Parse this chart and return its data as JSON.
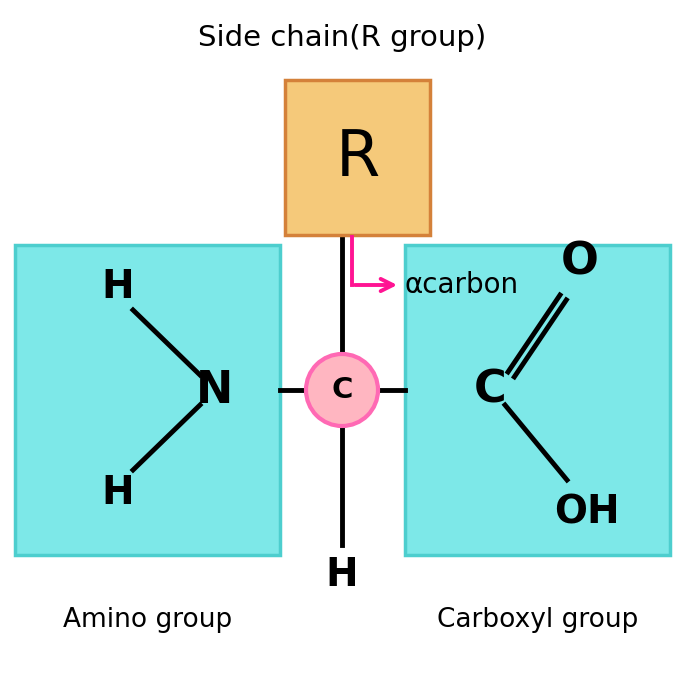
{
  "title": "Side chain(R group)",
  "bg_color": "#ffffff",
  "cyan_box_color": "#7DE8E8",
  "cyan_box_edge": "#4DCECE",
  "orange_box_color": "#F5C97A",
  "orange_box_edge": "#D4813A",
  "circle_fill": "#FFB6C1",
  "circle_edge": "#FF69B4",
  "arrow_color": "#FF1493",
  "amino_label": "Amino group",
  "carboxyl_label": "Carboxyl group",
  "alpha_label": "αcarbon"
}
